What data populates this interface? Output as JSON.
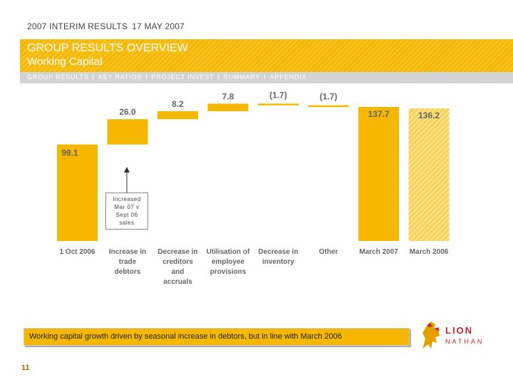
{
  "header": {
    "event": "2007 INTERIM RESULTS",
    "date": "17 MAY 2007"
  },
  "banner": {
    "title": "GROUP RESULTS OVERVIEW",
    "subtitle": "Working Capital"
  },
  "nav": {
    "items": [
      "GROUP RESULTS",
      "KEY RATIOS",
      "PROJECT INVEST",
      "SUMMARY",
      "APPENDIX"
    ],
    "separator": "I"
  },
  "chart_data": {
    "type": "bar",
    "subtype": "waterfall",
    "categories": [
      "1 Oct 2006",
      "Increase in trade debtors",
      "Decrease in creditors and accruals",
      "Utilisation of employee provisions",
      "Decrease in inventory",
      "Other",
      "March 2007",
      "March 2006"
    ],
    "category_label_lines": [
      "1 Oct 2006",
      "Increase in\ntrade\ndebtors",
      "Decrease in\ncreditors\nand\naccruals",
      "Utilisation of\nemployee\nprovisions",
      "Decrease in\ninventory",
      "Other",
      "March 2007",
      "March 2006"
    ],
    "values": [
      99.1,
      26.0,
      8.2,
      7.8,
      -1.7,
      -1.7,
      137.7,
      136.2
    ],
    "value_labels": [
      "99.1",
      "26.0",
      "8.2",
      "7.8",
      "(1.7)",
      "(1.7)",
      "137.7",
      "136.2"
    ],
    "kinds": [
      "total",
      "delta",
      "delta",
      "delta",
      "delta",
      "delta",
      "total",
      "total-hatched"
    ],
    "ylim": [
      0,
      145
    ],
    "colors": {
      "bar": "#f5b700",
      "label": "#666666",
      "hatched_bar": "#f7d35a"
    },
    "annotation": {
      "text": "Increased\nMar 07 v\nSept 06\nsales",
      "target_category": "Increase in trade debtors"
    }
  },
  "footer": {
    "message": "Working capital growth driven by seasonal increase in debtors, but in line with March 2006",
    "page_number": "11"
  },
  "logo": {
    "line1": "LION",
    "line2": "NATHAN",
    "icon": "lion-crest-icon",
    "colors": {
      "gold": "#e2a100",
      "red": "#c9252b"
    }
  },
  "colors": {
    "accent": "#f5b700",
    "nav_strip": "#d3d3d3",
    "page_number": "#b36a00"
  }
}
